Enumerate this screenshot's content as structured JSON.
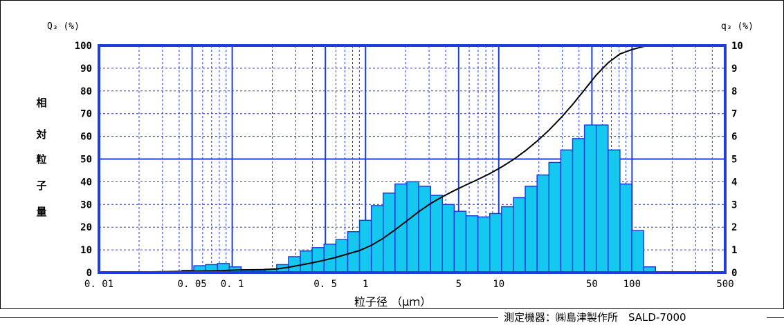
{
  "footer": {
    "text": "測定機器：㈱島津製作所　SALD-7000"
  },
  "chart_data": {
    "type": "bar+line",
    "xlabel": "粒子径 （μｍ）",
    "ylabel_left": "相対粒子量",
    "ylabel_left_chars": [
      "相",
      "対",
      "粒",
      "子",
      "量"
    ],
    "y_left_unit": "Q₃ (%)",
    "y_right_unit": "q₃ (%)",
    "x_scale": "log",
    "xlim": [
      0.01,
      500
    ],
    "ylim_left": [
      0,
      100
    ],
    "ylim_right": [
      0,
      10
    ],
    "x_ticks": [
      {
        "value": 0.01,
        "label": "0. 01"
      },
      {
        "value": 0.05,
        "label": "0. 05"
      },
      {
        "value": 0.1,
        "label": "0. 1"
      },
      {
        "value": 0.5,
        "label": "0. 5"
      },
      {
        "value": 1,
        "label": "1"
      },
      {
        "value": 5,
        "label": "5"
      },
      {
        "value": 10,
        "label": "10"
      },
      {
        "value": 50,
        "label": "50"
      },
      {
        "value": 100,
        "label": "100"
      },
      {
        "value": 500,
        "label": "500"
      }
    ],
    "y_left_ticks": [
      "0",
      "10",
      "20",
      "30",
      "40",
      "50",
      "60",
      "70",
      "80",
      "90",
      "100"
    ],
    "y_right_ticks": [
      "0",
      "1",
      "2",
      "3",
      "4",
      "5",
      "6",
      "7",
      "8",
      "9",
      "10"
    ],
    "grid": true,
    "colors": {
      "axis": "#1f3ce0",
      "bar_fill": "#14c8f0",
      "bar_edge": "#1f3ce0",
      "curve": "#000000"
    },
    "q3_histogram": {
      "bin_edges": [
        0.0123,
        0.0151,
        0.0185,
        0.0227,
        0.0279,
        0.0342,
        0.042,
        0.0515,
        0.0632,
        0.0775,
        0.0951,
        0.1167,
        0.1432,
        0.1757,
        0.2156,
        0.2645,
        0.3245,
        0.3982,
        0.4885,
        0.5994,
        0.7354,
        0.9023,
        1.107,
        1.358,
        1.666,
        2.044,
        2.508,
        3.078,
        3.776,
        4.633,
        5.684,
        6.974,
        8.557,
        10.5,
        12.88,
        15.8,
        19.39,
        23.79,
        29.19,
        35.82,
        43.94,
        53.92,
        66.15,
        81.16,
        99.58,
        122.2,
        149.9,
        183.9
      ],
      "values": [
        0,
        0,
        0,
        0,
        0,
        0,
        0.1,
        0.3,
        0.35,
        0.4,
        0.25,
        0.1,
        0.1,
        0.15,
        0.35,
        0.7,
        0.95,
        1.1,
        1.25,
        1.45,
        1.8,
        2.3,
        2.95,
        3.5,
        3.9,
        4.0,
        3.8,
        3.4,
        3.0,
        2.7,
        2.5,
        2.45,
        2.6,
        2.9,
        3.3,
        3.8,
        4.3,
        4.85,
        5.4,
        5.9,
        6.5,
        6.5,
        5.4,
        3.9,
        1.85,
        0.25,
        0
      ]
    },
    "Q3_curve": {
      "x": [
        0.0123,
        0.0775,
        0.1167,
        0.1757,
        0.2156,
        0.2645,
        0.3245,
        0.3982,
        0.4885,
        0.5994,
        0.7354,
        0.9023,
        1.107,
        1.358,
        1.666,
        2.044,
        2.508,
        3.078,
        3.776,
        4.633,
        5.684,
        6.974,
        8.557,
        10.5,
        12.88,
        15.8,
        19.39,
        23.79,
        29.19,
        35.82,
        43.94,
        53.92,
        66.15,
        81.16,
        99.58,
        122.2,
        149.9,
        183.9,
        500
      ],
      "y": [
        0,
        0.8,
        1.2,
        1.3,
        1.6,
        2.3,
        3.3,
        4.3,
        5.4,
        6.7,
        8.2,
        9.7,
        12,
        15.1,
        18.8,
        22.8,
        26.8,
        30.4,
        33.4,
        36.1,
        38.6,
        41,
        43.6,
        46.5,
        49.8,
        53.6,
        57.9,
        62.7,
        68.1,
        74,
        80.5,
        87,
        92.4,
        96.3,
        98.2,
        99.6,
        100,
        100,
        100
      ]
    }
  }
}
